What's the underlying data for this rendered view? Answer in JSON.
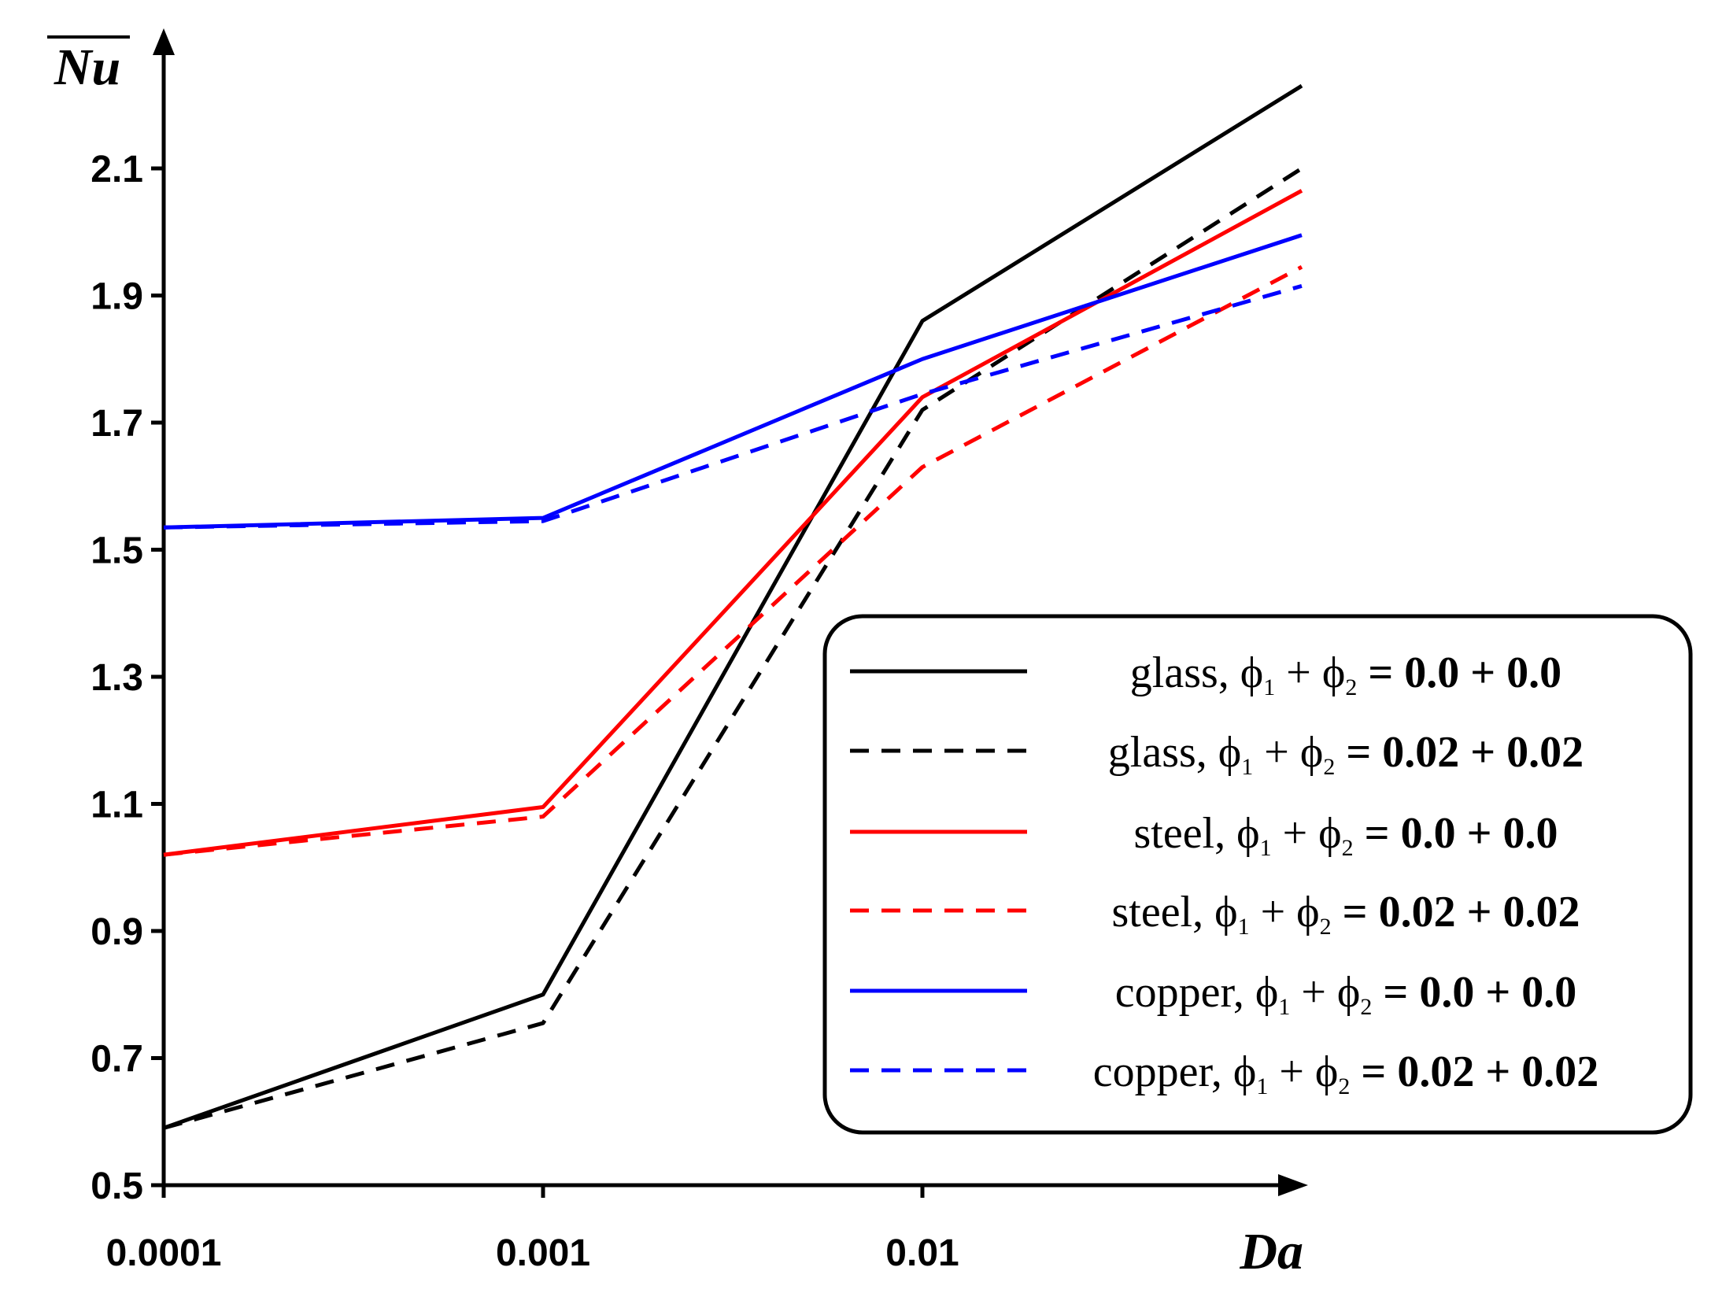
{
  "chart_data": {
    "type": "line",
    "title": "",
    "xlabel": "Da",
    "ylabel": "Nu",
    "ylabel_overline": true,
    "categories": [
      "0.0001",
      "0.001",
      "0.01",
      ""
    ],
    "yticks": [
      "0.5",
      "0.7",
      "0.9",
      "1.1",
      "1.3",
      "1.5",
      "1.7",
      "1.9",
      "2.1"
    ],
    "ylim": [
      0.5,
      2.23
    ],
    "grid": false,
    "legend_position": "bottom-right",
    "series": [
      {
        "name": "glass, ϕ1 + ϕ2 = 0.0 + 0.0",
        "material": "glass",
        "phi_values": "0.0 + 0.0",
        "color": "#000000",
        "dashed": false,
        "values": [
          0.59,
          0.8,
          1.86,
          2.23
        ]
      },
      {
        "name": "glass, ϕ1 + ϕ2 = 0.02 + 0.02",
        "material": "glass",
        "phi_values": "0.02 + 0.02",
        "color": "#000000",
        "dashed": true,
        "values": [
          0.59,
          0.755,
          1.72,
          2.1
        ]
      },
      {
        "name": "steel, ϕ1 + ϕ2 = 0.0 + 0.0",
        "material": "steel",
        "phi_values": "0.0 + 0.0",
        "color": "#ff0000",
        "dashed": false,
        "values": [
          1.02,
          1.095,
          1.74,
          2.065
        ]
      },
      {
        "name": "steel, ϕ1 + ϕ2 = 0.02 + 0.02",
        "material": "steel",
        "phi_values": "0.02 + 0.02",
        "color": "#ff0000",
        "dashed": true,
        "values": [
          1.02,
          1.08,
          1.63,
          1.945
        ]
      },
      {
        "name": "copper, ϕ1 + ϕ2 = 0.0 + 0.0",
        "material": "copper",
        "phi_values": "0.0 + 0.0",
        "color": "#0000ff",
        "dashed": false,
        "values": [
          1.535,
          1.55,
          1.8,
          1.995
        ]
      },
      {
        "name": "copper, ϕ1 + ϕ2 = 0.02 + 0.02",
        "material": "copper",
        "phi_values": "0.02 + 0.02",
        "color": "#0000ff",
        "dashed": true,
        "values": [
          1.535,
          1.545,
          1.745,
          1.915
        ]
      }
    ]
  }
}
